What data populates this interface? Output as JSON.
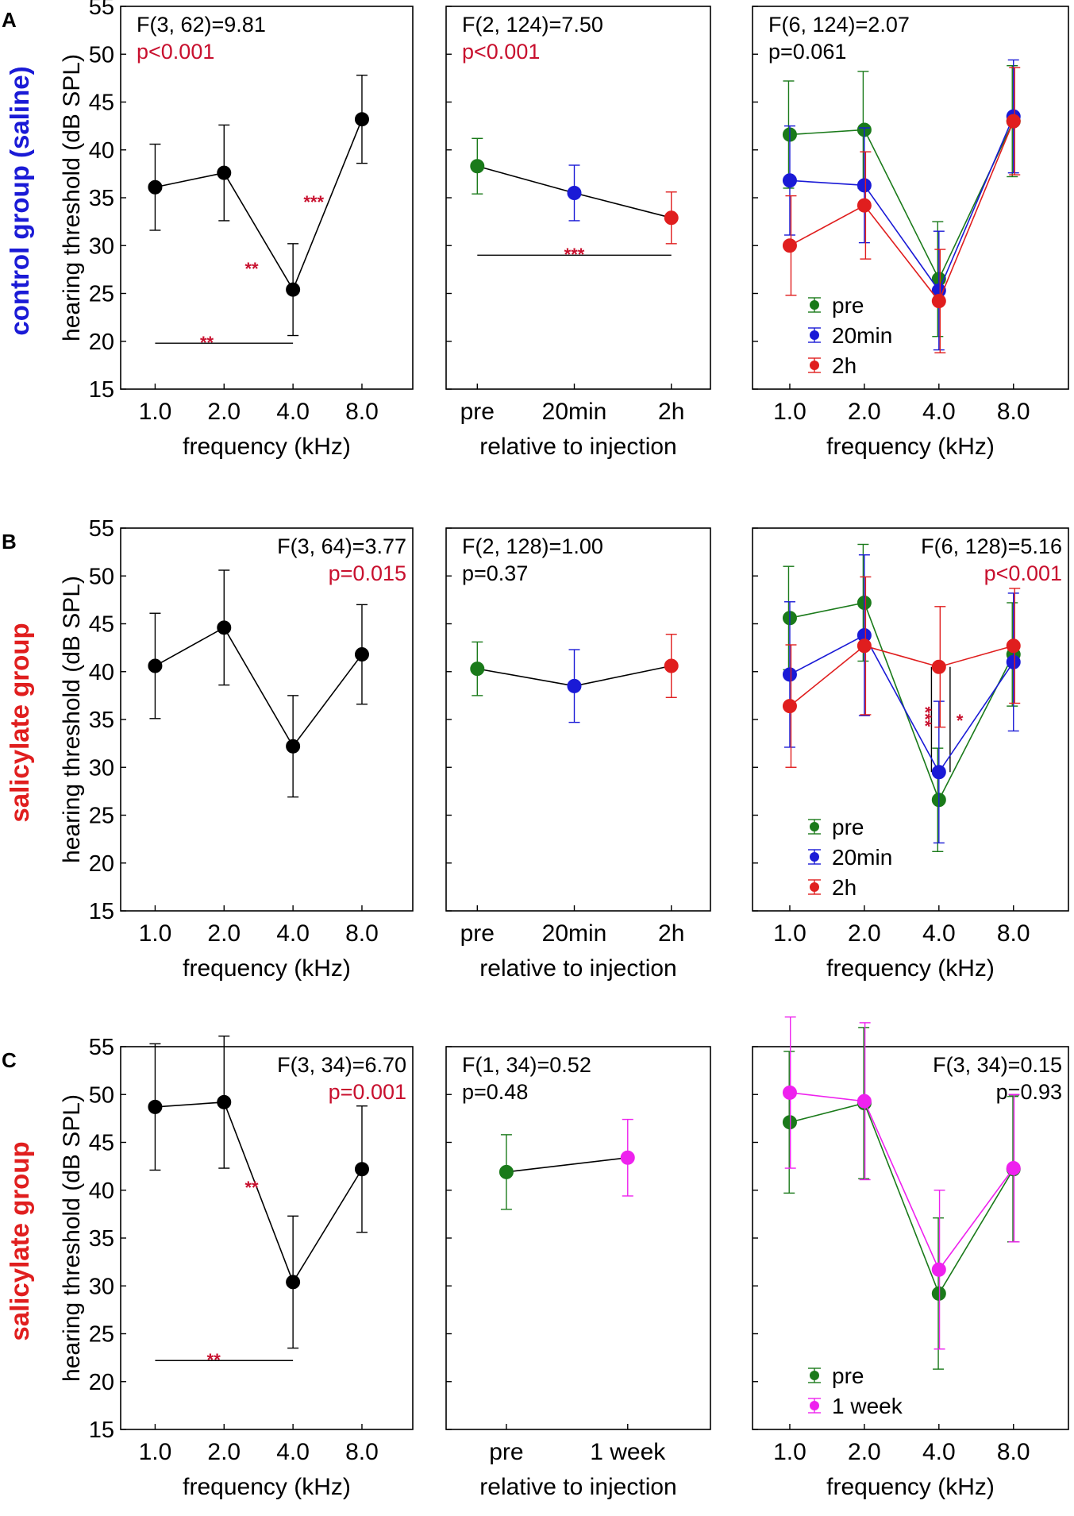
{
  "colors": {
    "black": "#000000",
    "green": "#1a7a1a",
    "blue": "#1a1ad6",
    "red": "#e01e1e",
    "magenta": "#ee22ee",
    "sig": "#c8102e",
    "axis": "#000000"
  },
  "common": {
    "y_axis_label": "hearing threshold (dB SPL)",
    "y_ticks": [
      15,
      20,
      25,
      30,
      35,
      40,
      45,
      50,
      55
    ],
    "ylim": [
      15,
      55
    ]
  },
  "rows": [
    {
      "letter": "A",
      "side_label": [
        {
          "text": "control group ",
          "color": "blue"
        },
        {
          "text": "(saline)",
          "color": "blue"
        }
      ],
      "panels": [
        {
          "type": "line",
          "xlabel": "frequency (kHz)",
          "categories": [
            "1.0",
            "2.0",
            "4.0",
            "8.0"
          ],
          "stat": {
            "f": "F(3, 62)=9.81",
            "p": "p<0.001",
            "p_color": "sig",
            "align": "left"
          },
          "series": [
            {
              "name": "all",
              "color": "black",
              "values": [
                36.1,
                37.6,
                25.4,
                43.2
              ],
              "err": [
                4.5,
                5.0,
                4.8,
                4.6
              ]
            }
          ],
          "sig_marks": [
            {
              "text": "**",
              "x": 2.4,
              "y": 27.6
            },
            {
              "text": "***",
              "x": 3.3,
              "y": 34.6
            },
            {
              "text": "**",
              "x": 1.75,
              "y": 19.9
            }
          ],
          "brackets": [
            {
              "x1": 1,
              "x2": 3,
              "y": 19.8
            }
          ]
        },
        {
          "type": "line",
          "xlabel": "relative to injection",
          "categories": [
            "pre",
            "20min",
            "2h"
          ],
          "stat": {
            "f": "F(2, 124)=7.50",
            "p": "p<0.001",
            "p_color": "sig",
            "align": "left"
          },
          "series": [
            {
              "name": "all",
              "color": "black",
              "point_colors": [
                "green",
                "blue",
                "red"
              ],
              "values": [
                38.3,
                35.5,
                32.9
              ],
              "err": [
                2.9,
                2.9,
                2.7
              ]
            }
          ],
          "sig_marks": [
            {
              "text": "***",
              "x": 2.0,
              "y": 29.1
            }
          ],
          "brackets": [
            {
              "x1": 1,
              "x2": 3,
              "y": 29.0
            }
          ]
        },
        {
          "type": "line",
          "xlabel": "frequency (kHz)",
          "categories": [
            "1.0",
            "2.0",
            "4.0",
            "8.0"
          ],
          "stat": {
            "f": "F(6, 124)=2.07",
            "p": "p=0.061",
            "p_color": "black",
            "align": "left"
          },
          "series": [
            {
              "name": "pre",
              "color": "green",
              "values": [
                41.6,
                42.1,
                26.5,
                43.0
              ],
              "err": [
                5.6,
                6.1,
                6.0,
                5.8
              ]
            },
            {
              "name": "20min",
              "color": "blue",
              "values": [
                36.8,
                36.3,
                25.3,
                43.5
              ],
              "err": [
                5.7,
                6.0,
                6.2,
                5.9
              ]
            },
            {
              "name": "2h",
              "color": "red",
              "values": [
                30.0,
                34.2,
                24.2,
                43.0
              ],
              "err": [
                5.2,
                5.6,
                5.4,
                5.6
              ]
            }
          ],
          "legend": {
            "entries": [
              "pre",
              "20min",
              "2h"
            ],
            "pos": "bottom-left"
          }
        }
      ]
    },
    {
      "letter": "B",
      "side_label": [
        {
          "text": "salicylate group",
          "color": "red"
        }
      ],
      "panels": [
        {
          "type": "line",
          "xlabel": "frequency (kHz)",
          "categories": [
            "1.0",
            "2.0",
            "4.0",
            "8.0"
          ],
          "stat": {
            "f": "F(3, 64)=3.77",
            "p": "p=0.015",
            "p_color": "sig",
            "align": "right"
          },
          "series": [
            {
              "name": "all",
              "color": "black",
              "values": [
                40.6,
                44.6,
                32.2,
                41.8
              ],
              "err": [
                5.5,
                6.0,
                5.3,
                5.2
              ]
            }
          ]
        },
        {
          "type": "line",
          "xlabel": "relative to injection",
          "categories": [
            "pre",
            "20min",
            "2h"
          ],
          "stat": {
            "f": "F(2, 128)=1.00",
            "p": "p=0.37",
            "p_color": "black",
            "align": "left"
          },
          "series": [
            {
              "name": "all",
              "color": "black",
              "point_colors": [
                "green",
                "blue",
                "red"
              ],
              "values": [
                40.3,
                38.5,
                40.6
              ],
              "err": [
                2.8,
                3.8,
                3.3
              ]
            }
          ]
        },
        {
          "type": "line",
          "xlabel": "frequency (kHz)",
          "categories": [
            "1.0",
            "2.0",
            "4.0",
            "8.0"
          ],
          "stat": {
            "f": "F(6, 128)=5.16",
            "p": "p<0.001",
            "p_color": "sig",
            "align": "right"
          },
          "series": [
            {
              "name": "pre",
              "color": "green",
              "values": [
                45.6,
                47.2,
                26.6,
                41.8
              ],
              "err": [
                5.4,
                6.1,
                5.4,
                5.4
              ]
            },
            {
              "name": "20min",
              "color": "blue",
              "values": [
                39.7,
                43.8,
                29.5,
                41.0
              ],
              "err": [
                7.6,
                8.4,
                7.4,
                7.2
              ]
            },
            {
              "name": "2h",
              "color": "red",
              "values": [
                36.4,
                42.7,
                40.5,
                42.7
              ],
              "err": [
                6.4,
                7.2,
                6.3,
                6.0
              ]
            }
          ],
          "legend": {
            "entries": [
              "pre",
              "20min",
              "2h"
            ],
            "pos": "bottom-left"
          },
          "sig_marks": [
            {
              "text": "***",
              "x": 2.82,
              "y": 35.3,
              "rotate": true
            },
            {
              "text": "*",
              "x": 3.28,
              "y": 34.9
            }
          ],
          "vlines": [
            {
              "x": 2.9,
              "y1": 29.5,
              "y2": 40.5
            },
            {
              "x": 3.15,
              "y1": 29.5,
              "y2": 40.5
            }
          ]
        }
      ]
    },
    {
      "letter": "C",
      "side_label": [
        {
          "text": "salicylate group",
          "color": "red"
        }
      ],
      "panels": [
        {
          "type": "line",
          "xlabel": "frequency (kHz)",
          "categories": [
            "1.0",
            "2.0",
            "4.0",
            "8.0"
          ],
          "stat": {
            "f": "F(3, 34)=6.70",
            "p": "p=0.001",
            "p_color": "sig",
            "align": "right"
          },
          "series": [
            {
              "name": "all",
              "color": "black",
              "values": [
                48.7,
                49.2,
                30.4,
                42.2
              ],
              "err": [
                6.6,
                6.9,
                6.9,
                6.6
              ]
            }
          ],
          "sig_marks": [
            {
              "text": "**",
              "x": 2.4,
              "y": 40.3
            },
            {
              "text": "**",
              "x": 1.85,
              "y": 22.3
            }
          ],
          "brackets": [
            {
              "x1": 1,
              "x2": 3,
              "y": 22.2
            }
          ]
        },
        {
          "type": "line",
          "xlabel": "relative to injection",
          "categories": [
            "pre",
            "1 week"
          ],
          "stat": {
            "f": "F(1, 34)=0.52",
            "p": "p=0.48",
            "p_color": "black",
            "align": "left"
          },
          "series": [
            {
              "name": "all",
              "color": "black",
              "point_colors": [
                "green",
                "magenta"
              ],
              "values": [
                41.9,
                43.4
              ],
              "err": [
                3.9,
                4.0
              ]
            }
          ]
        },
        {
          "type": "line",
          "xlabel": "frequency (kHz)",
          "categories": [
            "1.0",
            "2.0",
            "4.0",
            "8.0"
          ],
          "stat": {
            "f": "F(3, 34)=0.15",
            "p": "p=0.93",
            "p_color": "black",
            "align": "right"
          },
          "series": [
            {
              "name": "pre",
              "color": "green",
              "values": [
                47.1,
                49.1,
                29.2,
                42.2
              ],
              "err": [
                7.4,
                7.9,
                7.9,
                7.6
              ]
            },
            {
              "name": "1 week",
              "color": "magenta",
              "values": [
                50.2,
                49.3,
                31.7,
                42.3
              ],
              "err": [
                7.9,
                8.2,
                8.3,
                7.7
              ]
            }
          ],
          "legend": {
            "entries": [
              "pre",
              "1 week"
            ],
            "pos": "bottom-left"
          }
        }
      ]
    }
  ]
}
